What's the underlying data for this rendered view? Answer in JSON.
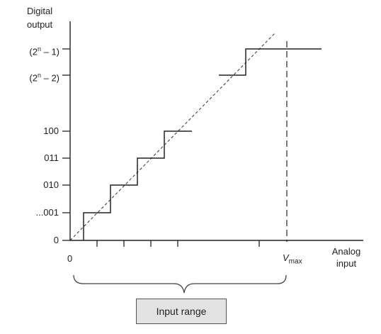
{
  "y_axis": {
    "title_line1": "Digital",
    "title_line2": "output",
    "ticks": {
      "t0": "0",
      "t1": "...001",
      "t2": "010",
      "t3": "011",
      "t4": "100",
      "n2_base": "(2",
      "n2_exp": "n",
      "n2_tail": " – 2)",
      "n1_base": "(2",
      "n1_exp": "n",
      "n1_tail": " – 1)"
    }
  },
  "x_axis": {
    "origin": "0",
    "vmax_main": "V",
    "vmax_sub": "max",
    "title_line1": "Analog",
    "title_line2": "input"
  },
  "input_range_label": "Input range",
  "colors": {
    "line": "#222222",
    "box_fill": "#e3e3e3"
  }
}
